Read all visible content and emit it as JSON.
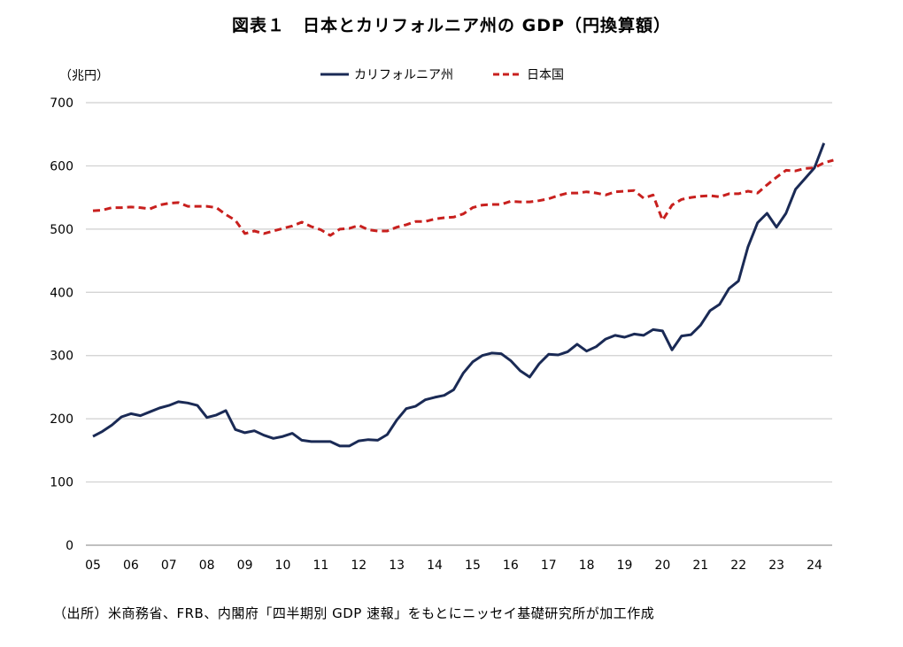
{
  "title": "図表１　日本とカリフォルニア州の GDP（円換算額）",
  "source": "（出所）米商務省、FRB、内閣府「四半期別 GDP 速報」をもとにニッセイ基礎研究所が加工作成",
  "chart_data": {
    "type": "line",
    "title": "図表１　日本とカリフォルニア州の GDP（円換算額）",
    "ylabel": "（兆円）",
    "xlabel": "",
    "ylim": [
      0,
      700
    ],
    "yticks": [
      0,
      100,
      200,
      300,
      400,
      500,
      600,
      700
    ],
    "xlim": [
      2005,
      2024.75
    ],
    "xticks": [
      2005,
      2006,
      2007,
      2008,
      2009,
      2010,
      2011,
      2012,
      2013,
      2014,
      2015,
      2016,
      2017,
      2018,
      2019,
      2020,
      2021,
      2022,
      2023,
      2024
    ],
    "xtick_labels": [
      "05",
      "06",
      "07",
      "08",
      "09",
      "10",
      "11",
      "12",
      "13",
      "14",
      "15",
      "16",
      "17",
      "18",
      "19",
      "20",
      "21",
      "22",
      "23",
      "24"
    ],
    "grid": true,
    "legend": "top-center",
    "series": [
      {
        "name": "カリフォルニア州",
        "color": "#1a2a55",
        "style": "solid",
        "x_start": 2005.0,
        "x_step": 0.25,
        "values": [
          172,
          180,
          190,
          203,
          208,
          205,
          211,
          217,
          221,
          227,
          225,
          221,
          202,
          206,
          213,
          183,
          178,
          181,
          174,
          169,
          172,
          177,
          166,
          164,
          164,
          164,
          157,
          157,
          165,
          167,
          166,
          175,
          198,
          216,
          220,
          230,
          234,
          237,
          246,
          272,
          290,
          300,
          304,
          303,
          292,
          276,
          266,
          287,
          302,
          301,
          306,
          318,
          307,
          314,
          326,
          332,
          329,
          334,
          332,
          341,
          339,
          309,
          331,
          333,
          348,
          371,
          381,
          406,
          418,
          472,
          510,
          525,
          503,
          525,
          563,
          580,
          597,
          636
        ]
      },
      {
        "name": "日本国",
        "color": "#c8201e",
        "style": "dashed",
        "x_start": 2005.0,
        "x_step": 0.25,
        "values": [
          529,
          530,
          534,
          534,
          535,
          534,
          532,
          538,
          541,
          542,
          536,
          536,
          536,
          534,
          523,
          514,
          493,
          497,
          493,
          497,
          501,
          505,
          511,
          504,
          499,
          490,
          500,
          501,
          506,
          499,
          497,
          497,
          503,
          507,
          512,
          512,
          516,
          518,
          519,
          524,
          534,
          538,
          539,
          539,
          544,
          543,
          543,
          545,
          548,
          553,
          557,
          557,
          559,
          557,
          554,
          559,
          560,
          561,
          549,
          554,
          514,
          538,
          547,
          550,
          552,
          553,
          551,
          556,
          556,
          560,
          557,
          570,
          582,
          593,
          592,
          596,
          597,
          605,
          609
        ]
      }
    ]
  }
}
